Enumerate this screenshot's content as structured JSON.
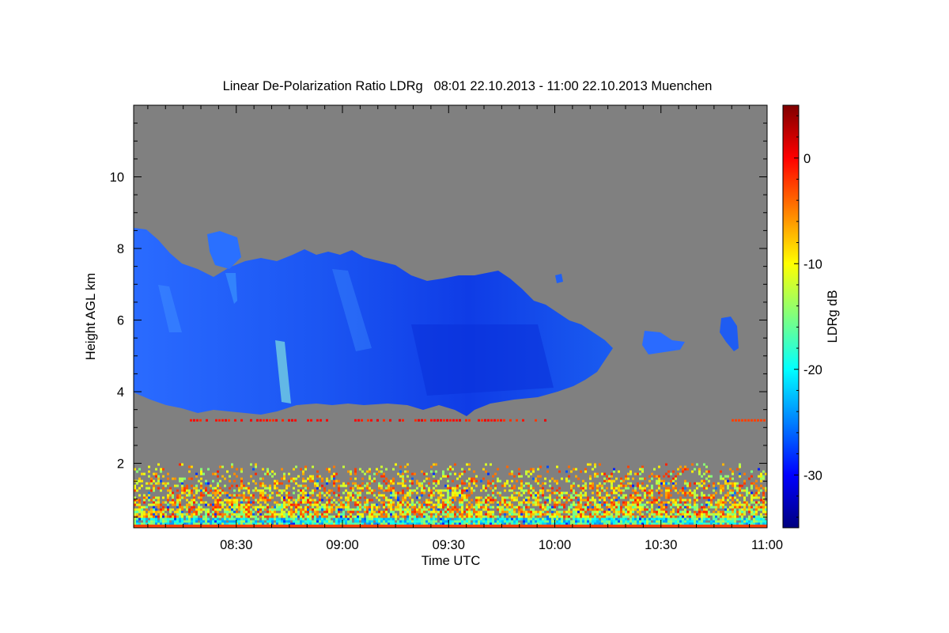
{
  "chart_data": {
    "type": "heatmap",
    "title": "Linear De-Polarization Ratio LDRg   08:01 22.10.2013 - 11:00 22.10.2013 Muenchen",
    "xlabel": "Time UTC",
    "ylabel": "Height AGL km",
    "x_range": [
      "08:01",
      "11:00"
    ],
    "y_range_km": [
      0.2,
      12.0
    ],
    "x_ticks": [
      "08:30",
      "09:00",
      "09:30",
      "10:00",
      "10:30",
      "11:00"
    ],
    "y_ticks": [
      "2",
      "4",
      "6",
      "8",
      "10"
    ],
    "colorbar": {
      "label": "LDRg dB",
      "range": [
        -35,
        5
      ],
      "ticks": [
        "0",
        "-10",
        "-20",
        "-30"
      ],
      "colormap": "jet"
    },
    "background_color": "#808080",
    "features": [
      {
        "feature": "ice cloud layer",
        "time_start": "08:01",
        "time_end": "10:17",
        "base_km": 3.3,
        "top_km": 8.6,
        "typical_ldr_db": -27,
        "detached_patches": [
          {
            "time": "10:43",
            "base_km": 5.1,
            "top_km": 6.0
          },
          {
            "time": "10:25",
            "base_km": 4.8,
            "top_km": 5.4
          }
        ]
      },
      {
        "feature": "thin melting layer signature",
        "height_km": 3.2,
        "typical_ldr_db": 1
      },
      {
        "feature": "boundary layer aerosol / noise",
        "base_km": 0.2,
        "top_km": 2.0,
        "ldr_range_db": [
          -22,
          -5
        ]
      }
    ]
  }
}
